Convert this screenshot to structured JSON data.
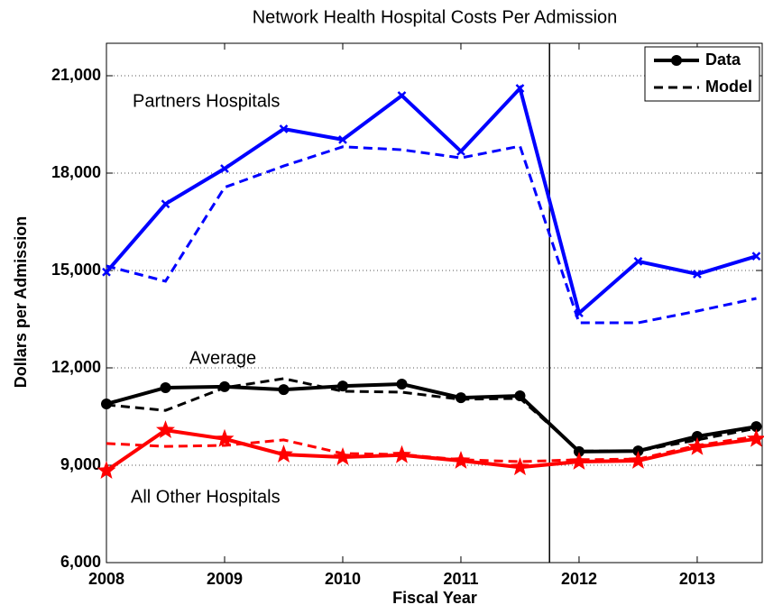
{
  "chart_data": {
    "type": "line",
    "title": "Network Health Hospital Costs Per Admission",
    "xlabel": "Fiscal Year",
    "ylabel": "Dollars per Admission",
    "x": [
      2008,
      2008.5,
      2009,
      2009.5,
      2010,
      2010.5,
      2011,
      2011.5,
      2012,
      2012.5,
      2013,
      2013.5
    ],
    "xlim": [
      2008,
      2013.55
    ],
    "xticks": [
      2008,
      2009,
      2010,
      2011,
      2012,
      2013
    ],
    "ylim": [
      6000,
      22000
    ],
    "yticks": [
      {
        "value": 6000,
        "label": "6,000"
      },
      {
        "value": 9000,
        "label": "9,000"
      },
      {
        "value": 12000,
        "label": "12,000"
      },
      {
        "value": 15000,
        "label": "15,000"
      },
      {
        "value": 18000,
        "label": "18,000"
      },
      {
        "value": 21000,
        "label": "21,000"
      }
    ],
    "grid": true,
    "vline": 2011.75,
    "legend": {
      "entries": [
        "Data",
        "Model"
      ],
      "position": "upper right"
    },
    "groups": [
      {
        "name": "Partners Hospitals",
        "color": "#0000ff",
        "marker": "x",
        "data": [
          14950,
          17050,
          18140,
          19360,
          19030,
          20390,
          18670,
          20610,
          13690,
          15280,
          14890,
          15440
        ],
        "model": [
          15140,
          14670,
          17560,
          18220,
          18810,
          18720,
          18470,
          18830,
          13390,
          13390,
          13750,
          14140
        ]
      },
      {
        "name": "Average",
        "color": "#000000",
        "marker": "circle",
        "data": [
          10890,
          11390,
          11420,
          11330,
          11440,
          11500,
          11080,
          11140,
          9420,
          9440,
          9890,
          10190
        ],
        "model": [
          10860,
          10690,
          11390,
          11670,
          11280,
          11250,
          11030,
          11060,
          9440,
          9440,
          9780,
          10140
        ]
      },
      {
        "name": "All Other Hospitals",
        "color": "#ff0000",
        "marker": "star",
        "data": [
          8830,
          10080,
          9810,
          9330,
          9250,
          9310,
          9140,
          8940,
          9110,
          9140,
          9560,
          9810
        ],
        "model": [
          9670,
          9580,
          9610,
          9780,
          9360,
          9330,
          9170,
          9110,
          9170,
          9190,
          9610,
          9890
        ]
      }
    ]
  }
}
